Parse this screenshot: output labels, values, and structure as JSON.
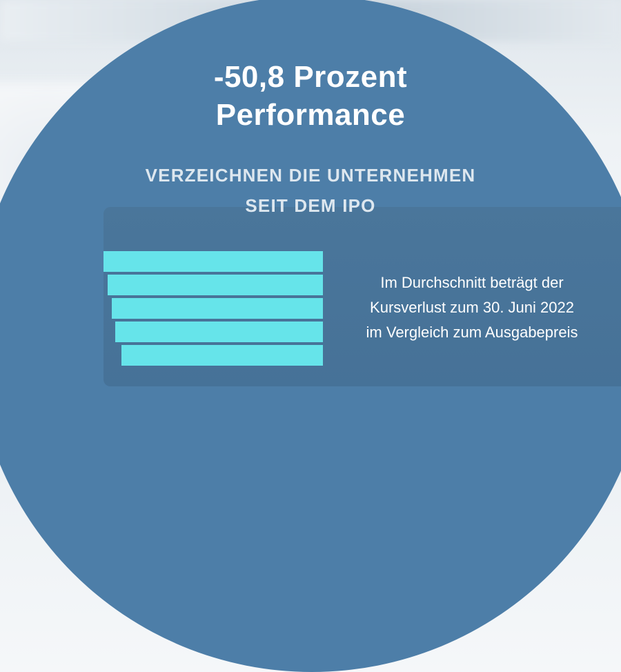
{
  "headline": {
    "line1": "-50,8 Prozent",
    "line2": "Performance"
  },
  "subheadline": {
    "line1": "VERZEICHNEN DIE UNTERNEHMEN",
    "line2": "SEIT DEM IPO"
  },
  "description": {
    "line1": "Im Durchschnitt beträgt der",
    "line2": "Kursverlust zum 30. Juni 2022",
    "line3": "im Vergleich zum Ausgabepreis"
  },
  "colors": {
    "circle": "#4d7ea8",
    "bars": "#66e4ea",
    "text": "#ffffff"
  }
}
